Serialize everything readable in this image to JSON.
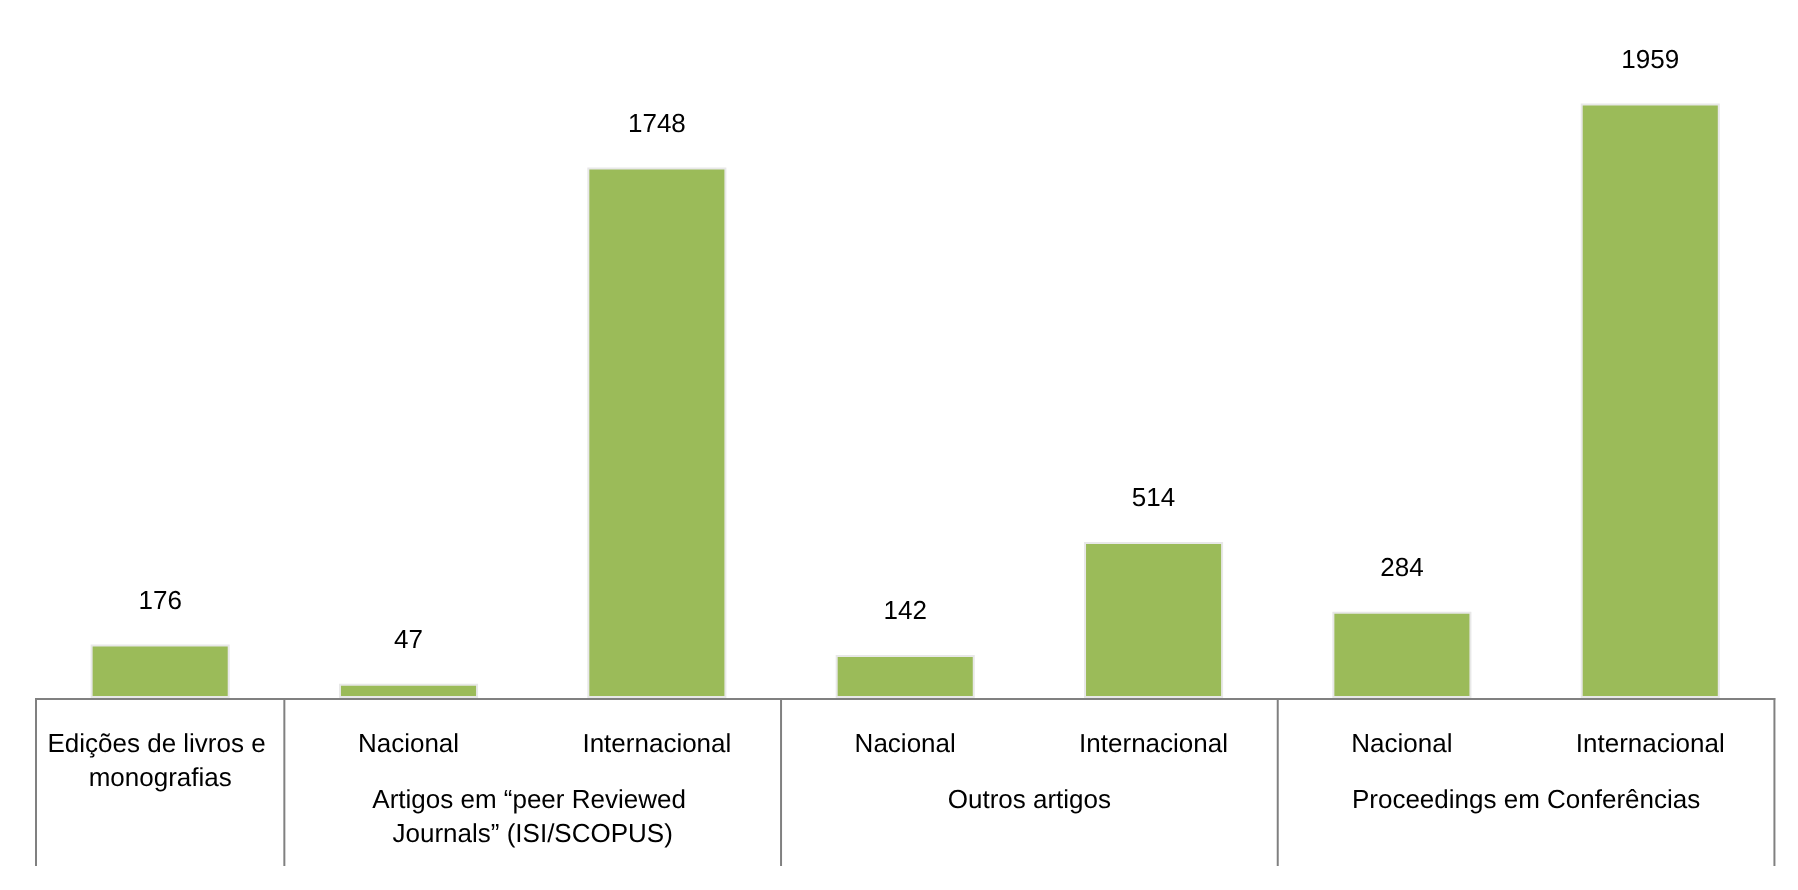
{
  "chart_data": {
    "type": "bar",
    "categories": [
      "Edições de livros e monografias",
      "Nacional",
      "Internacional",
      "Nacional",
      "Internacional",
      "Nacional",
      "Internacional"
    ],
    "values": [
      176,
      47,
      1748,
      142,
      514,
      284,
      1959
    ],
    "color": "#9bbb59",
    "data_labels": true,
    "annotations": [
      "Artigos em “peer Reviewed Journals” (ISI/SCOPUS)",
      "Outros artigos",
      "Proceedings em Conferências"
    ]
  }
}
